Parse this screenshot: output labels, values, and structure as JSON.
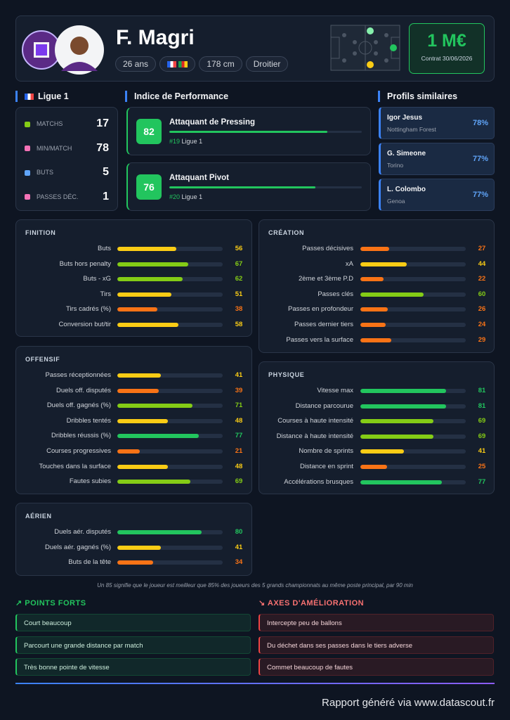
{
  "header": {
    "name": "F. Magri",
    "tags": [
      "26 ans",
      "178 cm",
      "Droitier"
    ],
    "value": "1 M€",
    "contract": "Contrat 30/06/2026"
  },
  "league": {
    "title": "Ligue 1",
    "stats": [
      {
        "label": "MATCHS",
        "value": 17
      },
      {
        "label": "MIN/MATCH",
        "value": 78
      },
      {
        "label": "BUTS",
        "value": 5
      },
      {
        "label": "PASSES DÉC.",
        "value": 1
      }
    ]
  },
  "performance": {
    "title": "Indice de Performance",
    "items": [
      {
        "score": 82,
        "role": "Attaquant de Pressing",
        "rank": "#19",
        "league": "Ligue 1"
      },
      {
        "score": 76,
        "role": "Attaquant Pivot",
        "rank": "#20",
        "league": "Ligue 1"
      }
    ]
  },
  "similar": {
    "title": "Profils similaires",
    "items": [
      {
        "name": "Igor Jesus",
        "club": "Nottingham Forest",
        "similarity": "78%"
      },
      {
        "name": "G. Simeone",
        "club": "Torino",
        "similarity": "77%"
      },
      {
        "name": "L. Colombo",
        "club": "Genoa",
        "similarity": "77%"
      }
    ]
  },
  "sections": {
    "finition": {
      "title": "FINITION",
      "metrics": [
        {
          "label": "Buts",
          "value": 56
        },
        {
          "label": "Buts hors penalty",
          "value": 67
        },
        {
          "label": "Buts - xG",
          "value": 62
        },
        {
          "label": "Tirs",
          "value": 51
        },
        {
          "label": "Tirs cadrés (%)",
          "value": 38
        },
        {
          "label": "Conversion but/tir",
          "value": 58
        }
      ]
    },
    "creation": {
      "title": "CRÉATION",
      "metrics": [
        {
          "label": "Passes décisives",
          "value": 27
        },
        {
          "label": "xA",
          "value": 44
        },
        {
          "label": "2ème et 3ème P.D",
          "value": 22
        },
        {
          "label": "Passes clés",
          "value": 60
        },
        {
          "label": "Passes en profondeur",
          "value": 26
        },
        {
          "label": "Passes dernier tiers",
          "value": 24
        },
        {
          "label": "Passes vers la surface",
          "value": 29
        }
      ]
    },
    "offensif": {
      "title": "OFFENSIF",
      "metrics": [
        {
          "label": "Passes réceptionnées",
          "value": 41
        },
        {
          "label": "Duels off. disputés",
          "value": 39
        },
        {
          "label": "Duels off. gagnés (%)",
          "value": 71
        },
        {
          "label": "Dribbles tentés",
          "value": 48
        },
        {
          "label": "Dribbles réussis (%)",
          "value": 77
        },
        {
          "label": "Courses progressives",
          "value": 21
        },
        {
          "label": "Touches dans la surface",
          "value": 48
        },
        {
          "label": "Fautes subies",
          "value": 69
        }
      ]
    },
    "physique": {
      "title": "PHYSIQUE",
      "metrics": [
        {
          "label": "Vitesse max",
          "value": 81
        },
        {
          "label": "Distance parcourue",
          "value": 81
        },
        {
          "label": "Courses à haute intensité",
          "value": 69
        },
        {
          "label": "Distance à haute intensité",
          "value": 69
        },
        {
          "label": "Nombre de sprints",
          "value": 41
        },
        {
          "label": "Distance en sprint",
          "value": 25
        },
        {
          "label": "Accélérations brusques",
          "value": 77
        }
      ]
    },
    "aerien": {
      "title": "AÉRIEN",
      "metrics": [
        {
          "label": "Duels aér. disputés",
          "value": 80
        },
        {
          "label": "Duels aér. gagnés (%)",
          "value": 41
        },
        {
          "label": "Buts de la tête",
          "value": 34
        }
      ]
    }
  },
  "note": "Un 85 signifie que le joueur est meilleur que 85% des joueurs des 5 grands championnats au même poste principal, par 90 min",
  "strengths": {
    "title": "POINTS FORTS",
    "items": [
      "Court beaucoup",
      "Parcourt une grande distance par match",
      "Très bonne pointe de vitesse"
    ]
  },
  "improvements": {
    "title": "AXES D'AMÉLIORATION",
    "items": [
      "Intercepte peu de ballons",
      "Du déchet dans ses passes dans le tiers adverse",
      "Commet beaucoup de fautes"
    ]
  },
  "footer": "Rapport généré via www.datascout.fr"
}
